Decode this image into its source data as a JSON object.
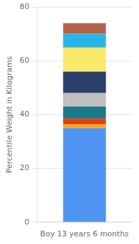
{
  "chart_data": {
    "type": "bar",
    "categories": [
      "Boy 13 years 6 months"
    ],
    "series": [
      {
        "color": "#4F94F0",
        "values": [
          35
        ]
      },
      {
        "color": "#F5A623",
        "values": [
          1.5
        ]
      },
      {
        "color": "#E04010",
        "values": [
          2.0
        ]
      },
      {
        "color": "#1A7A8A",
        "values": [
          4.5
        ]
      },
      {
        "color": "#C0BEBE",
        "values": [
          5.0
        ]
      },
      {
        "color": "#2B3F6B",
        "values": [
          8.0
        ]
      },
      {
        "color": "#FAE86B",
        "values": [
          9.0
        ]
      },
      {
        "color": "#29B5E8",
        "values": [
          5.0
        ]
      },
      {
        "color": "#B5614A",
        "values": [
          4.0
        ]
      }
    ],
    "ylabel": "Percentile Weight in Kilograms",
    "ylim": [
      0,
      80
    ],
    "yticks": [
      0,
      20,
      40,
      60,
      80
    ],
    "stacked": true,
    "grid": true
  }
}
